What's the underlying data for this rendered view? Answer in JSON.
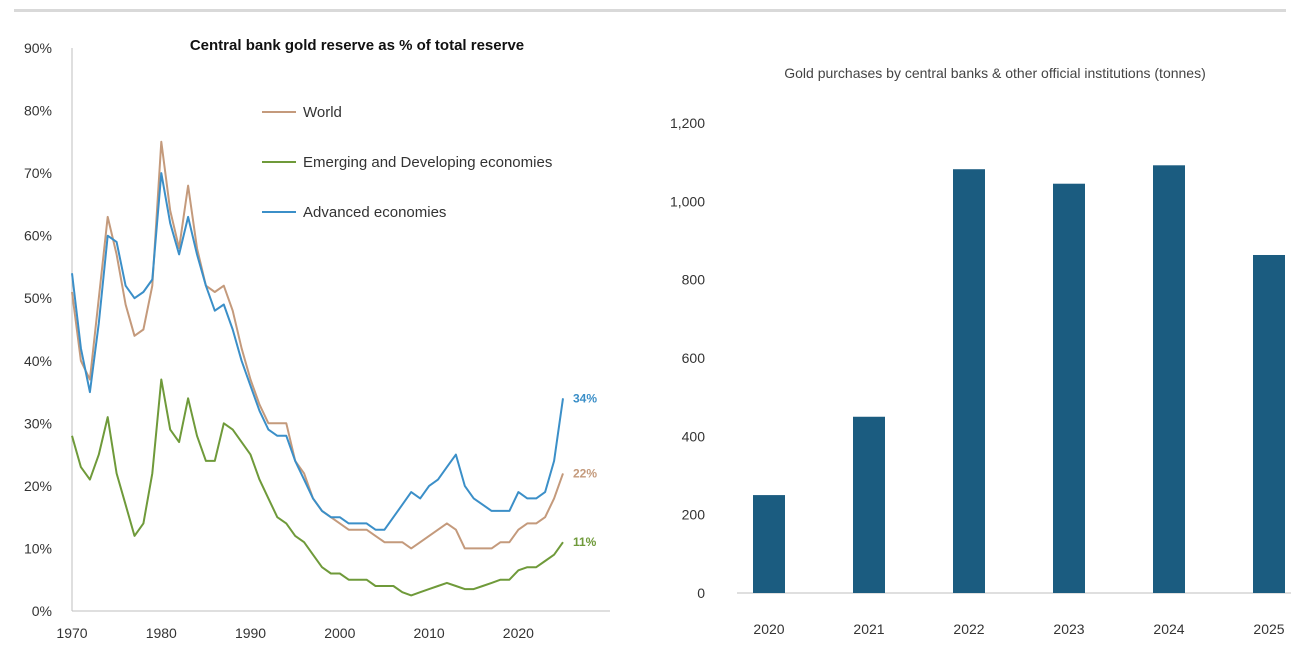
{
  "chart_data": [
    {
      "type": "line",
      "title": "Central bank gold reserve as % of total reserve",
      "xlabel": "",
      "ylabel": "",
      "x_range": [
        1970,
        2025
      ],
      "ylim": [
        0,
        90
      ],
      "x_ticks": [
        "1970",
        "1980",
        "1990",
        "2000",
        "2010",
        "2020"
      ],
      "y_ticks": [
        "0%",
        "10%",
        "20%",
        "30%",
        "40%",
        "50%",
        "60%",
        "70%",
        "80%",
        "90%"
      ],
      "legend_position": "top-center",
      "grid": false,
      "series": [
        {
          "name": "World",
          "color": "#c49a7c",
          "end_label": "22%",
          "x": [
            1970,
            1971,
            1972,
            1973,
            1974,
            1975,
            1976,
            1977,
            1978,
            1979,
            1980,
            1981,
            1982,
            1983,
            1984,
            1985,
            1986,
            1987,
            1988,
            1989,
            1990,
            1991,
            1992,
            1993,
            1994,
            1995,
            1996,
            1997,
            1998,
            1999,
            2000,
            2001,
            2002,
            2003,
            2004,
            2005,
            2006,
            2007,
            2008,
            2009,
            2010,
            2011,
            2012,
            2013,
            2014,
            2015,
            2016,
            2017,
            2018,
            2019,
            2020,
            2021,
            2022,
            2023,
            2024,
            2025
          ],
          "y": [
            51,
            40,
            37,
            50,
            63,
            57,
            49,
            44,
            45,
            52,
            75,
            64,
            58,
            68,
            58,
            52,
            51,
            52,
            48,
            42,
            37,
            33,
            30,
            30,
            30,
            24,
            22,
            18,
            16,
            15,
            14,
            13,
            13,
            13,
            12,
            11,
            11,
            11,
            10,
            11,
            12,
            13,
            14,
            13,
            10,
            10,
            10,
            10,
            11,
            11,
            13,
            14,
            14,
            15,
            18,
            22
          ]
        },
        {
          "name": "Emerging and Developing economies",
          "color": "#6f9a3a",
          "end_label": "11%",
          "x": [
            1970,
            1971,
            1972,
            1973,
            1974,
            1975,
            1976,
            1977,
            1978,
            1979,
            1980,
            1981,
            1982,
            1983,
            1984,
            1985,
            1986,
            1987,
            1988,
            1989,
            1990,
            1991,
            1992,
            1993,
            1994,
            1995,
            1996,
            1997,
            1998,
            1999,
            2000,
            2001,
            2002,
            2003,
            2004,
            2005,
            2006,
            2007,
            2008,
            2009,
            2010,
            2011,
            2012,
            2013,
            2014,
            2015,
            2016,
            2017,
            2018,
            2019,
            2020,
            2021,
            2022,
            2023,
            2024,
            2025
          ],
          "y": [
            28,
            23,
            21,
            25,
            31,
            22,
            17,
            12,
            14,
            22,
            37,
            29,
            27,
            34,
            28,
            24,
            24,
            30,
            29,
            27,
            25,
            21,
            18,
            15,
            14,
            12,
            11,
            9,
            7,
            6,
            6,
            5,
            5,
            5,
            4,
            4,
            4,
            3,
            2.5,
            3,
            3.5,
            4,
            4.5,
            4,
            3.5,
            3.5,
            4,
            4.5,
            5,
            5,
            6.5,
            7,
            7,
            8,
            9,
            11
          ]
        },
        {
          "name": "Advanced economies",
          "color": "#3b8fc8",
          "end_label": "34%",
          "x": [
            1970,
            1971,
            1972,
            1973,
            1974,
            1975,
            1976,
            1977,
            1978,
            1979,
            1980,
            1981,
            1982,
            1983,
            1984,
            1985,
            1986,
            1987,
            1988,
            1989,
            1990,
            1991,
            1992,
            1993,
            1994,
            1995,
            1996,
            1997,
            1998,
            1999,
            2000,
            2001,
            2002,
            2003,
            2004,
            2005,
            2006,
            2007,
            2008,
            2009,
            2010,
            2011,
            2012,
            2013,
            2014,
            2015,
            2016,
            2017,
            2018,
            2019,
            2020,
            2021,
            2022,
            2023,
            2024,
            2025
          ],
          "y": [
            54,
            42,
            35,
            46,
            60,
            59,
            52,
            50,
            51,
            53,
            70,
            62,
            57,
            63,
            57,
            52,
            48,
            49,
            45,
            40,
            36,
            32,
            29,
            28,
            28,
            24,
            21,
            18,
            16,
            15,
            15,
            14,
            14,
            14,
            13,
            13,
            15,
            17,
            19,
            18,
            20,
            21,
            23,
            25,
            20,
            18,
            17,
            16,
            16,
            16,
            19,
            18,
            18,
            19,
            24,
            34
          ]
        }
      ]
    },
    {
      "type": "bar",
      "title": "Gold purchases by central banks & other official institutions (tonnes)",
      "xlabel": "",
      "ylabel": "",
      "categories": [
        "2020",
        "2021",
        "2022",
        "2023",
        "2024",
        "2025"
      ],
      "values": [
        250,
        450,
        1082,
        1045,
        1092,
        863
      ],
      "ylim": [
        0,
        1200
      ],
      "y_ticks": [
        "0",
        "200",
        "400",
        "600",
        "800",
        "1,000",
        "1,200"
      ],
      "bar_color": "#1b5c80",
      "grid": false
    }
  ]
}
